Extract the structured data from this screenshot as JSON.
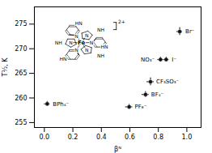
{
  "chart_data": {
    "type": "scatter",
    "xlabel": "βᴺ",
    "ylabel": "T½, K",
    "point_labels": [
      "BPh₄⁻",
      "PF₆⁻",
      "BF₄⁻",
      "CF₃SO₃⁻",
      "NO₃⁻",
      "I⁻",
      "Br⁻"
    ],
    "x": [
      0.02,
      0.595,
      0.71,
      0.745,
      0.815,
      0.855,
      0.95
    ],
    "values": [
      258.8,
      258.2,
      260.7,
      263.3,
      267.8,
      267.8,
      273.5
    ],
    "xerr": [
      0.02,
      0.025,
      0.025,
      0.025,
      0.02,
      0.02,
      0.02
    ],
    "yerr": [
      0.5,
      0.5,
      0.6,
      0.8,
      0.5,
      0.5,
      0.8
    ],
    "color": "#111111",
    "xlim": [
      -0.07,
      1.1
    ],
    "ylim": [
      254.0,
      278.5
    ],
    "xticks": [
      {
        "value": 0,
        "label": "0.0"
      },
      0.2,
      0.4,
      0.6,
      0.8,
      {
        "value": 1.0,
        "label": "1.0"
      }
    ],
    "yticks": [
      255,
      260,
      265,
      270,
      275
    ],
    "annotations": [
      "Fe",
      "N",
      "N",
      "N",
      "N",
      "N",
      "N",
      "NH",
      "NH",
      "NH",
      "HN",
      "HN",
      "HN",
      "2+"
    ]
  }
}
